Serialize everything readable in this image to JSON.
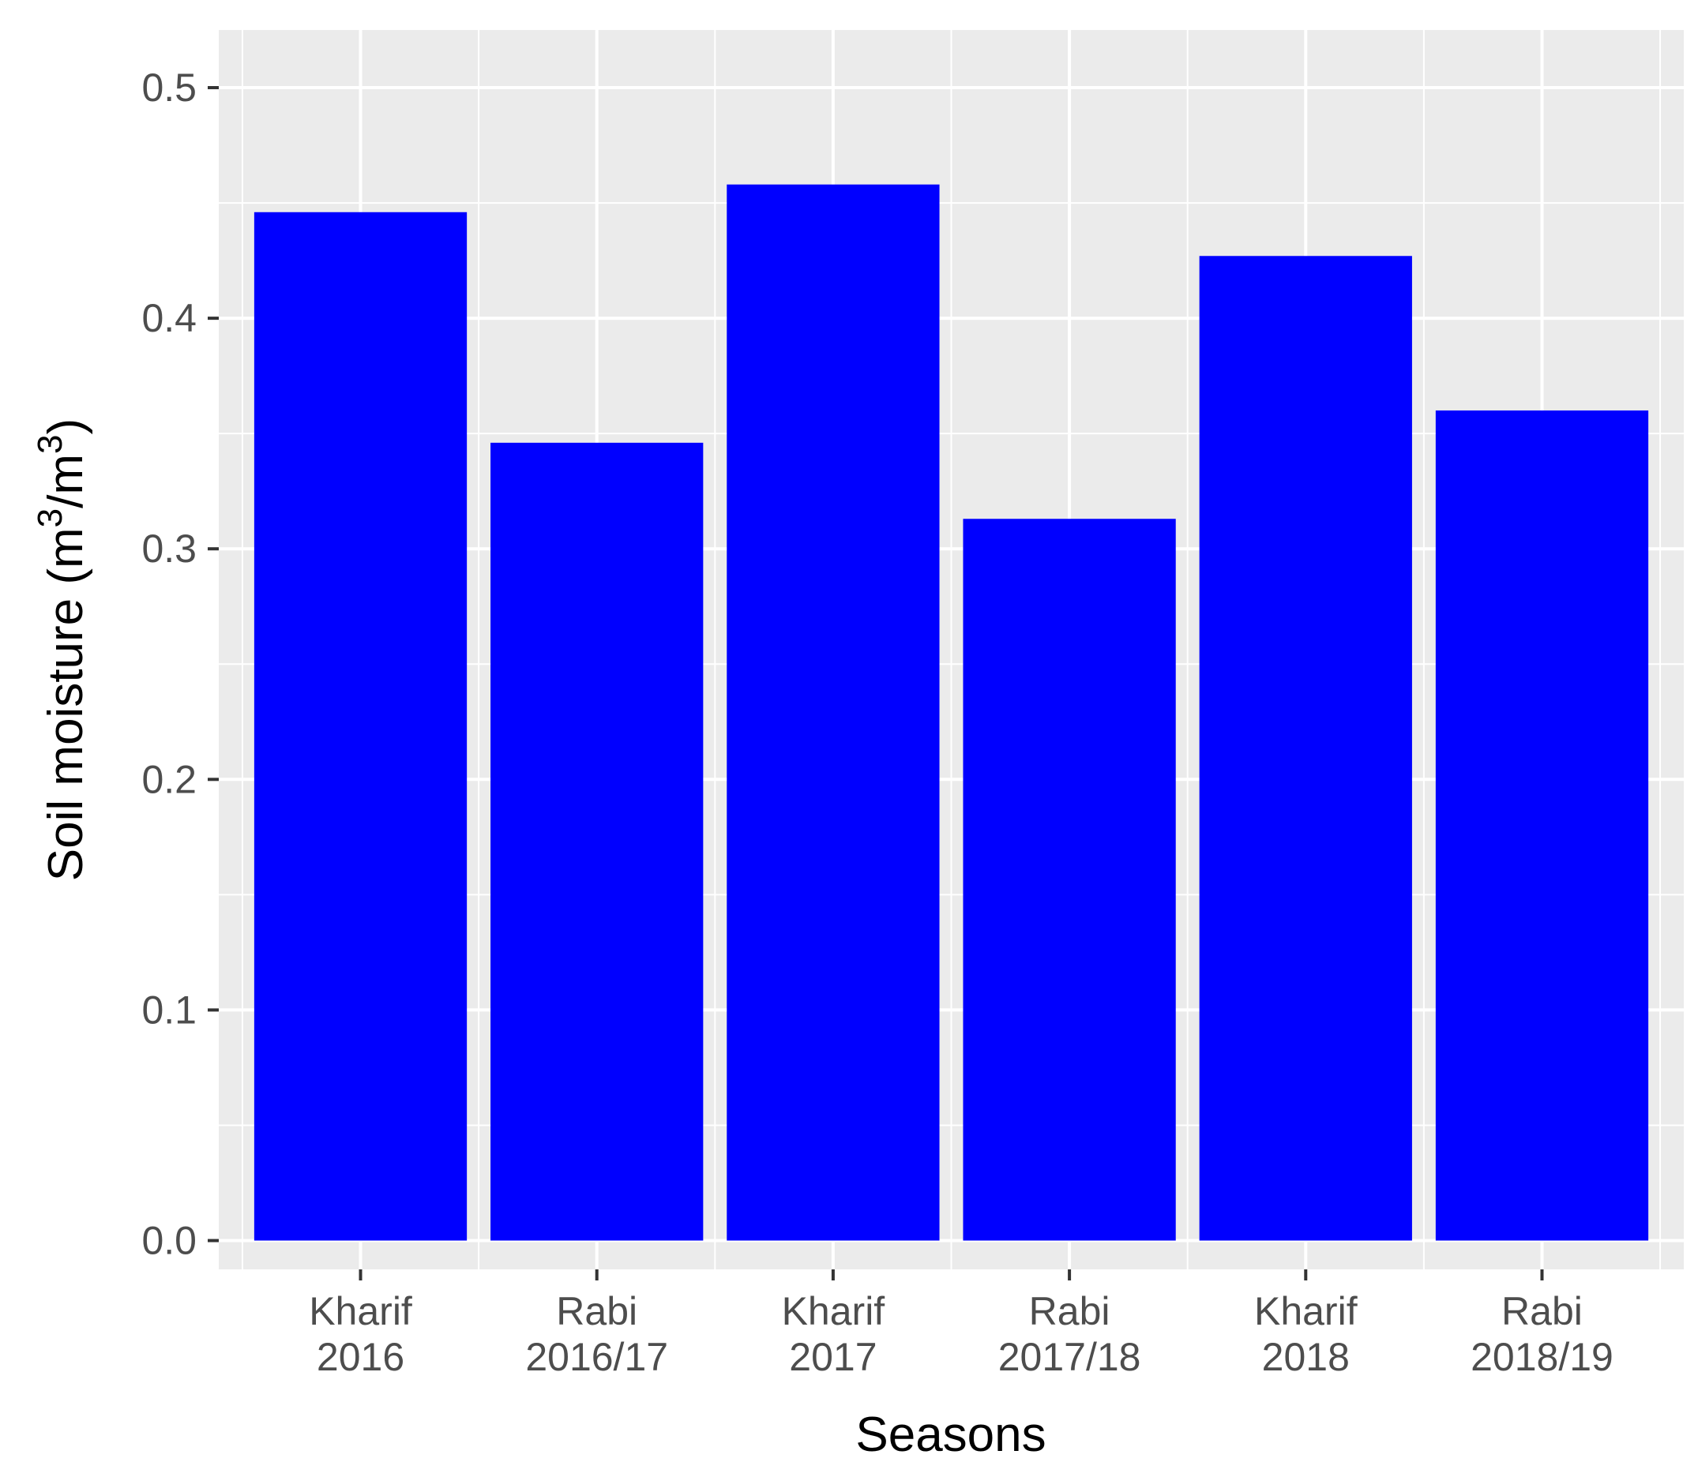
{
  "chart_data": {
    "type": "bar",
    "categories": [
      [
        "Kharif",
        "2016"
      ],
      [
        "Rabi",
        "2016/17"
      ],
      [
        "Kharif",
        "2017"
      ],
      [
        "Rabi",
        "2017/18"
      ],
      [
        "Kharif",
        "2018"
      ],
      [
        "Rabi",
        "2018/19"
      ]
    ],
    "values": [
      0.446,
      0.346,
      0.458,
      0.313,
      0.427,
      0.36
    ],
    "xlabel": "Seasons",
    "ylabel": "Soil moisture (m³/m³)",
    "ylabel_parts": {
      "prefix": "Soil moisture (m",
      "sup1": "3",
      "mid": "/m",
      "sup2": "3",
      "suffix": ")"
    },
    "ylim": [
      -0.0125,
      0.525
    ],
    "yticks": [
      0.0,
      0.1,
      0.2,
      0.3,
      0.4,
      0.5
    ],
    "ytick_labels": [
      "0.0",
      "0.1",
      "0.2",
      "0.3",
      "0.4",
      "0.5"
    ],
    "grid": true,
    "colors": {
      "bar": "#0000ff",
      "panel": "#ebebeb",
      "grid": "#ffffff"
    }
  }
}
